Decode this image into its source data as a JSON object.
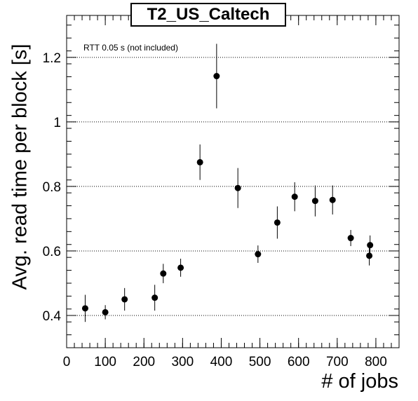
{
  "chart_data": {
    "type": "scatter",
    "title": "T2_US_Caltech",
    "xlabel": "# of jobs",
    "ylabel": "Avg. read time per block [s]",
    "annotation": "RTT 0.05 s (not included)",
    "xlim": [
      0,
      860
    ],
    "ylim": [
      0.3,
      1.33
    ],
    "x_ticks": [
      0,
      100,
      200,
      300,
      400,
      500,
      600,
      700,
      800
    ],
    "y_ticks": [
      0.4,
      0.6,
      0.8,
      1,
      1.2
    ],
    "y_grid": true,
    "points": [
      {
        "x": 48,
        "y": 0.422,
        "err": 0.042
      },
      {
        "x": 100,
        "y": 0.41,
        "err": 0.022
      },
      {
        "x": 150,
        "y": 0.45,
        "err": 0.035
      },
      {
        "x": 228,
        "y": 0.455,
        "err": 0.04
      },
      {
        "x": 250,
        "y": 0.53,
        "err": 0.03
      },
      {
        "x": 295,
        "y": 0.548,
        "err": 0.028
      },
      {
        "x": 345,
        "y": 0.875,
        "err": 0.055
      },
      {
        "x": 388,
        "y": 1.142,
        "err": 0.1
      },
      {
        "x": 443,
        "y": 0.795,
        "err": 0.062
      },
      {
        "x": 495,
        "y": 0.59,
        "err": 0.027
      },
      {
        "x": 545,
        "y": 0.688,
        "err": 0.05
      },
      {
        "x": 590,
        "y": 0.768,
        "err": 0.045
      },
      {
        "x": 643,
        "y": 0.755,
        "err": 0.048
      },
      {
        "x": 688,
        "y": 0.758,
        "err": 0.045
      },
      {
        "x": 735,
        "y": 0.64,
        "err": 0.025
      },
      {
        "x": 783,
        "y": 0.585,
        "err": 0.03
      },
      {
        "x": 785,
        "y": 0.618,
        "err": 0.03
      }
    ]
  }
}
